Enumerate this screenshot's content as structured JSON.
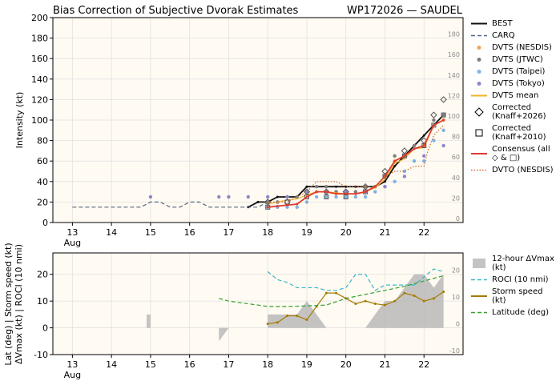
{
  "header": {
    "title_left": "Bias Correction of Subjective Dvorak Estimates",
    "title_right": "WP172026 — SAUDEL"
  },
  "x_axis": {
    "ticks": [
      13,
      14,
      15,
      16,
      17,
      18,
      19,
      20,
      21,
      22
    ],
    "tick_labels": [
      "13",
      "14",
      "15",
      "16",
      "17",
      "18",
      "19",
      "20",
      "21",
      "22"
    ],
    "month_label": "Aug",
    "range": [
      12.5,
      23.0
    ]
  },
  "chart_data": [
    {
      "type": "line",
      "panel": "intensity",
      "ylabel": "Intensity (kt)",
      "ylim": [
        0,
        200
      ],
      "yticks": [
        0,
        20,
        40,
        60,
        80,
        100,
        120,
        140,
        160,
        180,
        200
      ],
      "right_ticks": [
        0,
        20,
        40,
        60,
        80,
        100,
        120,
        140,
        160,
        180
      ],
      "grid": true,
      "legend_position": "outside-right",
      "legend": [
        "BEST",
        "CARQ",
        "DVTS (NESDIS)",
        "DVTS (JTWC)",
        "DVTS (Taipei)",
        "DVTS (Tokyo)",
        "DVTS mean",
        "Corrected (Knaff+2026)",
        "Corrected (Knaff+2010)",
        "Consensus (all ◇ & □)",
        "DVTO (NESDIS)"
      ],
      "series": [
        {
          "name": "BEST",
          "color": "#111111",
          "style": "solid",
          "x": [
            17.5,
            17.75,
            18.0,
            18.25,
            18.5,
            18.75,
            19.0,
            19.25,
            19.5,
            19.75,
            20.0,
            20.25,
            20.5,
            20.75,
            21.0,
            21.25,
            21.5,
            21.75,
            22.0,
            22.25,
            22.5
          ],
          "y": [
            15,
            20,
            20,
            25,
            25,
            25,
            35,
            35,
            35,
            35,
            35,
            35,
            35,
            35,
            40,
            55,
            65,
            75,
            85,
            95,
            105
          ]
        },
        {
          "name": "CARQ",
          "color": "#55687f",
          "style": "dashed",
          "x": [
            13.0,
            13.5,
            14.0,
            14.5,
            14.75,
            15.0,
            15.25,
            15.5,
            15.75,
            16.0,
            16.25,
            16.5,
            16.75,
            17.0,
            17.25,
            17.5,
            17.75,
            18.0
          ],
          "y": [
            15,
            15,
            15,
            15,
            15,
            20,
            20,
            15,
            15,
            20,
            20,
            15,
            15,
            15,
            15,
            15,
            15,
            20
          ]
        },
        {
          "name": "DVTS (NESDIS)",
          "color": "#f0a35a",
          "style": "dot",
          "x": [
            18.0,
            18.25,
            18.5,
            18.75,
            19.0,
            19.25,
            19.5,
            19.75,
            20.0,
            20.25,
            20.5,
            20.75,
            21.0,
            21.25,
            21.5,
            21.75,
            22.0,
            22.25,
            22.5
          ],
          "y": [
            20,
            20,
            25,
            25,
            30,
            30,
            30,
            30,
            30,
            30,
            30,
            35,
            45,
            60,
            65,
            75,
            75,
            100,
            100
          ]
        },
        {
          "name": "DVTS (JTWC)",
          "color": "#7f7f7f",
          "style": "dot",
          "x": [
            18.0,
            18.25,
            18.5,
            18.75,
            19.0,
            19.25,
            19.5,
            19.75,
            20.0,
            20.25,
            20.5,
            20.75,
            21.0,
            21.25,
            21.5,
            21.75,
            22.0,
            22.25,
            22.5
          ],
          "y": [
            20,
            20,
            25,
            25,
            30,
            35,
            35,
            30,
            30,
            30,
            35,
            35,
            45,
            65,
            65,
            75,
            75,
            100,
            105
          ]
        },
        {
          "name": "DVTS (Taipei)",
          "color": "#7fb2e5",
          "style": "dot",
          "x": [
            18.0,
            18.25,
            18.5,
            18.75,
            19.0,
            19.25,
            19.5,
            19.75,
            20.0,
            20.25,
            20.5,
            20.75,
            21.0,
            21.25,
            21.5,
            21.75,
            22.0,
            22.25,
            22.5
          ],
          "y": [
            15,
            15,
            15,
            15,
            20,
            25,
            25,
            25,
            25,
            25,
            25,
            30,
            35,
            40,
            50,
            60,
            60,
            80,
            90
          ]
        },
        {
          "name": "DVTS (Tokyo)",
          "color": "#8b87c9",
          "style": "dot",
          "x": [
            15.0,
            16.75,
            17.0,
            17.5,
            18.0,
            18.5,
            19.0,
            19.5,
            20.0,
            20.5,
            21.0,
            21.5,
            22.0,
            22.5
          ],
          "y": [
            25,
            25,
            25,
            25,
            25,
            25,
            30,
            30,
            30,
            30,
            35,
            45,
            65,
            75
          ]
        },
        {
          "name": "DVTS mean",
          "color": "#f0b429",
          "style": "solid",
          "x": [
            18.0,
            18.25,
            18.5,
            18.75,
            19.0,
            19.25,
            19.5,
            19.75,
            20.0,
            20.25,
            20.5,
            20.75,
            21.0,
            21.25,
            21.5,
            21.75,
            22.0,
            22.25,
            22.5
          ],
          "y": [
            18,
            20,
            22,
            23,
            27,
            30,
            30,
            29,
            28,
            28,
            30,
            34,
            42,
            58,
            62,
            72,
            73,
            95,
            100
          ]
        },
        {
          "name": "Corrected (Knaff+2026)",
          "color": "#555555",
          "style": "diamond",
          "x": [
            18.0,
            18.5,
            19.0,
            19.5,
            20.0,
            20.5,
            21.0,
            21.5,
            22.0,
            22.25,
            22.5
          ],
          "y": [
            20,
            20,
            30,
            30,
            30,
            35,
            50,
            70,
            80,
            105,
            120
          ]
        },
        {
          "name": "Corrected (Knaff+2010)",
          "color": "#555555",
          "style": "square",
          "x": [
            18.0,
            18.5,
            19.0,
            19.5,
            20.0,
            20.5,
            21.0,
            21.5,
            22.0,
            22.25,
            22.5
          ],
          "y": [
            15,
            20,
            25,
            25,
            25,
            30,
            45,
            65,
            75,
            95,
            105
          ]
        },
        {
          "name": "Consensus (all ◇ & □)",
          "color": "#e03b2d",
          "style": "solid",
          "x": [
            18.0,
            18.25,
            18.5,
            18.75,
            19.0,
            19.25,
            19.5,
            19.75,
            20.0,
            20.25,
            20.5,
            20.75,
            21.0,
            21.25,
            21.5,
            21.75,
            22.0,
            22.25,
            22.5
          ],
          "y": [
            15,
            16,
            17,
            18,
            25,
            30,
            30,
            28,
            28,
            28,
            30,
            35,
            45,
            60,
            65,
            72,
            75,
            95,
            100
          ]
        },
        {
          "name": "DVTO (NESDIS)",
          "color": "#d0682e",
          "style": "dotted",
          "x": [
            18.0,
            18.25,
            18.5,
            18.75,
            19.0,
            19.25,
            19.5,
            19.75,
            20.0,
            20.25,
            20.5,
            20.75,
            21.0,
            21.25,
            21.5,
            21.75,
            22.0,
            22.1,
            22.25,
            22.5
          ],
          "y": [
            20,
            20,
            20,
            25,
            30,
            40,
            40,
            40,
            35,
            35,
            35,
            35,
            45,
            50,
            50,
            55,
            55,
            70,
            85,
            95
          ]
        }
      ]
    },
    {
      "type": "line",
      "panel": "environment",
      "ylabel": "Lat (deg) | Storm speed (kt)\nΔVmax (kt) | ROCI (10 nmi)",
      "ylim": [
        -10,
        28
      ],
      "yticks": [
        -10,
        0,
        10,
        20
      ],
      "right_ticks": [
        -10,
        0,
        10,
        20
      ],
      "grid": true,
      "legend_position": "outside-right",
      "legend": [
        "12-hour ΔVmax (kt)",
        "ROCI (10 nmi)",
        "Storm speed (kt)",
        "Latitude (deg)"
      ],
      "series": [
        {
          "name": "12-hour ΔVmax (kt)",
          "color": "#b0b0b0",
          "style": "area",
          "x": [
            13.0,
            14.9,
            14.9,
            15.0,
            15.0,
            16.0,
            16.75,
            16.75,
            16.9,
            17.0,
            17.0,
            18.0,
            18.0,
            18.25,
            18.5,
            18.75,
            19.0,
            19.25,
            19.5,
            19.75,
            20.0,
            20.25,
            20.5,
            20.75,
            21.0,
            21.25,
            21.5,
            21.75,
            22.0,
            22.25,
            22.5
          ],
          "y": [
            0,
            0,
            5,
            5,
            0,
            0,
            0,
            -5,
            -2,
            0,
            0,
            0,
            5,
            5,
            5,
            5,
            10,
            5,
            0,
            0,
            0,
            0,
            0,
            5,
            10,
            10,
            15,
            20,
            20,
            15,
            20
          ]
        },
        {
          "name": "ROCI (10 nmi)",
          "color": "#3bb6c8",
          "style": "dashed",
          "x": [
            18.0,
            18.25,
            18.5,
            18.75,
            19.0,
            19.25,
            19.5,
            19.75,
            20.0,
            20.25,
            20.5,
            20.75,
            21.0,
            21.25,
            21.5,
            21.75,
            22.0,
            22.25,
            22.5
          ],
          "y": [
            21,
            18,
            17,
            15,
            15,
            15,
            14,
            14,
            15,
            20,
            20,
            14,
            16,
            16,
            16,
            16,
            19,
            22,
            21
          ]
        },
        {
          "name": "Storm speed (kt)",
          "color": "#a47a00",
          "style": "solid",
          "x": [
            18.0,
            18.25,
            18.5,
            18.75,
            19.0,
            19.25,
            19.5,
            19.75,
            20.0,
            20.25,
            20.5,
            20.75,
            21.0,
            21.25,
            21.5,
            21.75,
            22.0,
            22.25,
            22.5
          ],
          "y": [
            1.5,
            2,
            4.5,
            4.5,
            3,
            8,
            13,
            13,
            11,
            9,
            10,
            9,
            8.5,
            10,
            13,
            12,
            10,
            11,
            13.5
          ]
        },
        {
          "name": "Latitude (deg)",
          "color": "#33a02c",
          "style": "dashed",
          "x": [
            16.75,
            17.0,
            18.0,
            18.5,
            19.0,
            19.5,
            20.0,
            20.5,
            21.0,
            21.5,
            22.0,
            22.5
          ],
          "y": [
            11,
            10,
            8,
            8,
            8.2,
            8.5,
            11,
            12.5,
            14,
            15.5,
            17.5,
            19.5
          ]
        }
      ]
    }
  ]
}
